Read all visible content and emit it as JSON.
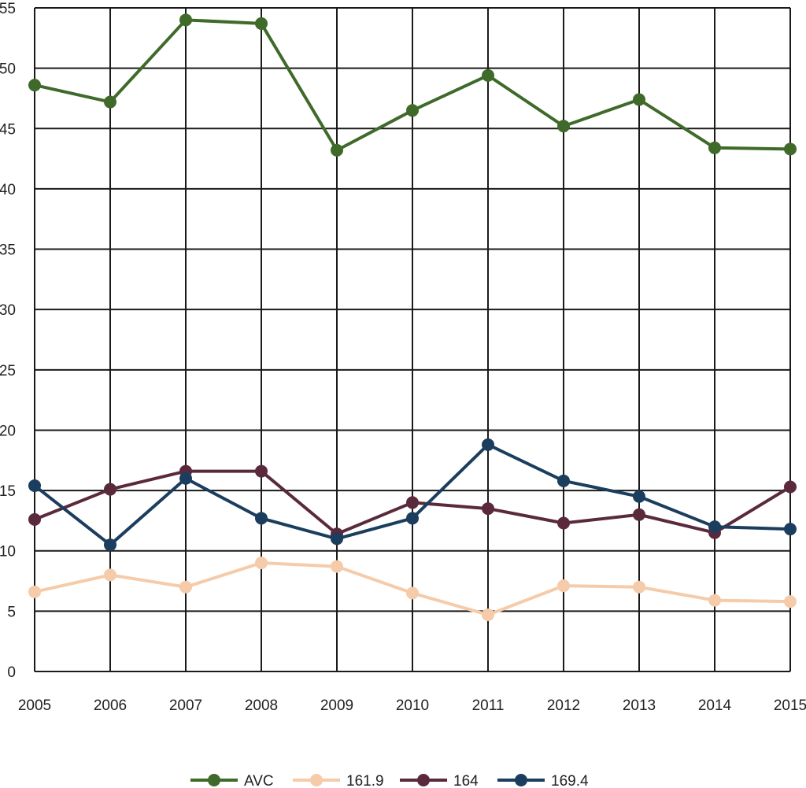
{
  "chart_data": {
    "type": "line",
    "title": "",
    "xlabel": "",
    "ylabel": "",
    "x": [
      "2005",
      "2006",
      "2007",
      "2008",
      "2009",
      "2010",
      "2011",
      "2012",
      "2013",
      "2014",
      "2015"
    ],
    "ylim": [
      0,
      55
    ],
    "yticks": [
      0,
      5,
      10,
      15,
      20,
      25,
      30,
      35,
      40,
      45,
      50,
      55
    ],
    "ytick_labels": [
      "0",
      "5",
      "10",
      "15",
      "20",
      "25",
      "30",
      "35",
      "40",
      "45",
      "50",
      "55"
    ],
    "grid": true,
    "legend_position": "bottom",
    "series": [
      {
        "name": "AVC",
        "color": "#3f6a2a",
        "values": [
          48.6,
          47.2,
          54.0,
          53.7,
          43.2,
          46.5,
          49.4,
          45.2,
          47.4,
          43.4,
          43.3
        ]
      },
      {
        "name": "161.9",
        "color": "#f5cba9",
        "values": [
          6.6,
          8.0,
          7.0,
          9.0,
          8.7,
          6.5,
          4.7,
          7.1,
          7.0,
          5.9,
          5.8
        ]
      },
      {
        "name": "164",
        "color": "#5a2a3c",
        "values": [
          12.6,
          15.1,
          16.6,
          16.6,
          11.4,
          14.0,
          13.5,
          12.3,
          13.0,
          11.5,
          15.3
        ]
      },
      {
        "name": "169.4",
        "color": "#1b3d5e",
        "values": [
          15.4,
          10.5,
          16.0,
          12.7,
          11.0,
          12.7,
          18.8,
          15.8,
          14.5,
          12.0,
          11.8
        ]
      }
    ]
  }
}
